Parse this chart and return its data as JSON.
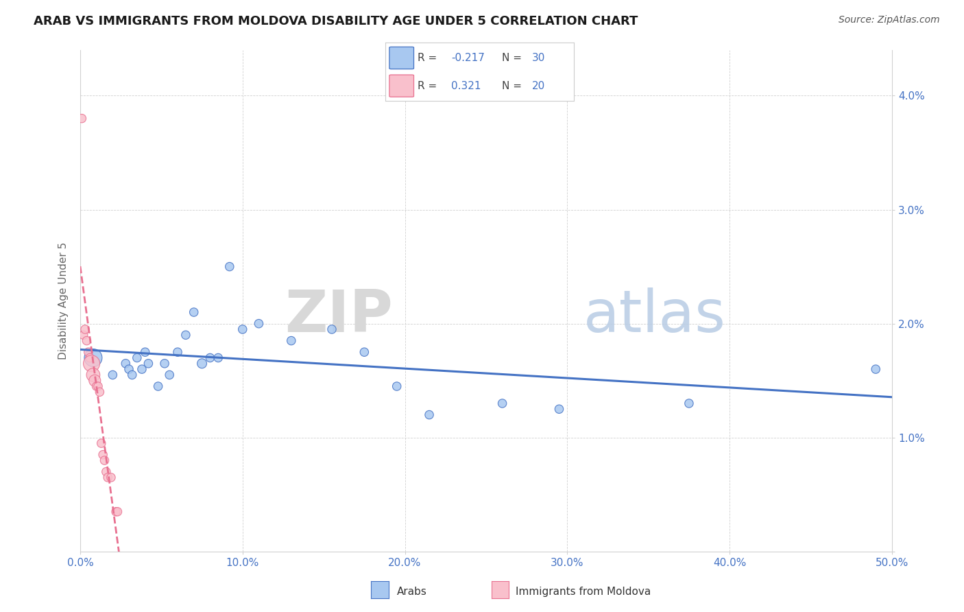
{
  "title": "ARAB VS IMMIGRANTS FROM MOLDOVA DISABILITY AGE UNDER 5 CORRELATION CHART",
  "source": "Source: ZipAtlas.com",
  "ylabel": "Disability Age Under 5",
  "xlim": [
    0.0,
    0.5
  ],
  "ylim": [
    0.0,
    0.044
  ],
  "xticks": [
    0.0,
    0.1,
    0.2,
    0.3,
    0.4,
    0.5
  ],
  "xticklabels": [
    "0.0%",
    "10.0%",
    "20.0%",
    "30.0%",
    "40.0%",
    "50.0%"
  ],
  "yticks": [
    0.0,
    0.01,
    0.02,
    0.03,
    0.04
  ],
  "yticklabels": [
    "",
    "1.0%",
    "2.0%",
    "3.0%",
    "4.0%"
  ],
  "r_arab": -0.217,
  "n_arab": 30,
  "r_moldova": 0.321,
  "n_moldova": 20,
  "color_arab": "#a8c8f0",
  "color_moldova": "#f9c0cc",
  "trendline_arab_color": "#4472c4",
  "trendline_moldova_color": "#e87090",
  "watermark_zip": "ZIP",
  "watermark_atlas": "atlas",
  "tick_color": "#4472c4",
  "grid_color": "#d0d0d0",
  "legend_border_color": "#cccccc",
  "arab_x": [
    0.008,
    0.02,
    0.028,
    0.03,
    0.032,
    0.035,
    0.038,
    0.04,
    0.042,
    0.048,
    0.052,
    0.055,
    0.06,
    0.065,
    0.07,
    0.075,
    0.08,
    0.085,
    0.092,
    0.1,
    0.11,
    0.13,
    0.155,
    0.175,
    0.195,
    0.215,
    0.26,
    0.295,
    0.375,
    0.49
  ],
  "arab_y": [
    0.017,
    0.0155,
    0.0165,
    0.016,
    0.0155,
    0.017,
    0.016,
    0.0175,
    0.0165,
    0.0145,
    0.0165,
    0.0155,
    0.0175,
    0.019,
    0.021,
    0.0165,
    0.017,
    0.017,
    0.025,
    0.0195,
    0.02,
    0.0185,
    0.0195,
    0.0175,
    0.0145,
    0.012,
    0.013,
    0.0125,
    0.013,
    0.016
  ],
  "arab_s": [
    350,
    80,
    80,
    80,
    80,
    80,
    80,
    80,
    80,
    80,
    80,
    80,
    80,
    80,
    80,
    100,
    80,
    80,
    80,
    80,
    80,
    80,
    80,
    80,
    80,
    80,
    80,
    80,
    80,
    80
  ],
  "moldova_x": [
    0.001,
    0.002,
    0.003,
    0.004,
    0.005,
    0.006,
    0.007,
    0.008,
    0.009,
    0.01,
    0.011,
    0.012,
    0.013,
    0.014,
    0.015,
    0.016,
    0.017,
    0.019,
    0.022,
    0.023
  ],
  "moldova_y": [
    0.038,
    0.019,
    0.0195,
    0.0185,
    0.0175,
    0.017,
    0.0165,
    0.0155,
    0.015,
    0.0145,
    0.0145,
    0.014,
    0.0095,
    0.0085,
    0.008,
    0.007,
    0.0065,
    0.0065,
    0.0035,
    0.0035
  ],
  "moldova_s": [
    80,
    80,
    80,
    80,
    80,
    80,
    300,
    200,
    150,
    80,
    80,
    80,
    80,
    80,
    80,
    80,
    80,
    80,
    80,
    80
  ]
}
